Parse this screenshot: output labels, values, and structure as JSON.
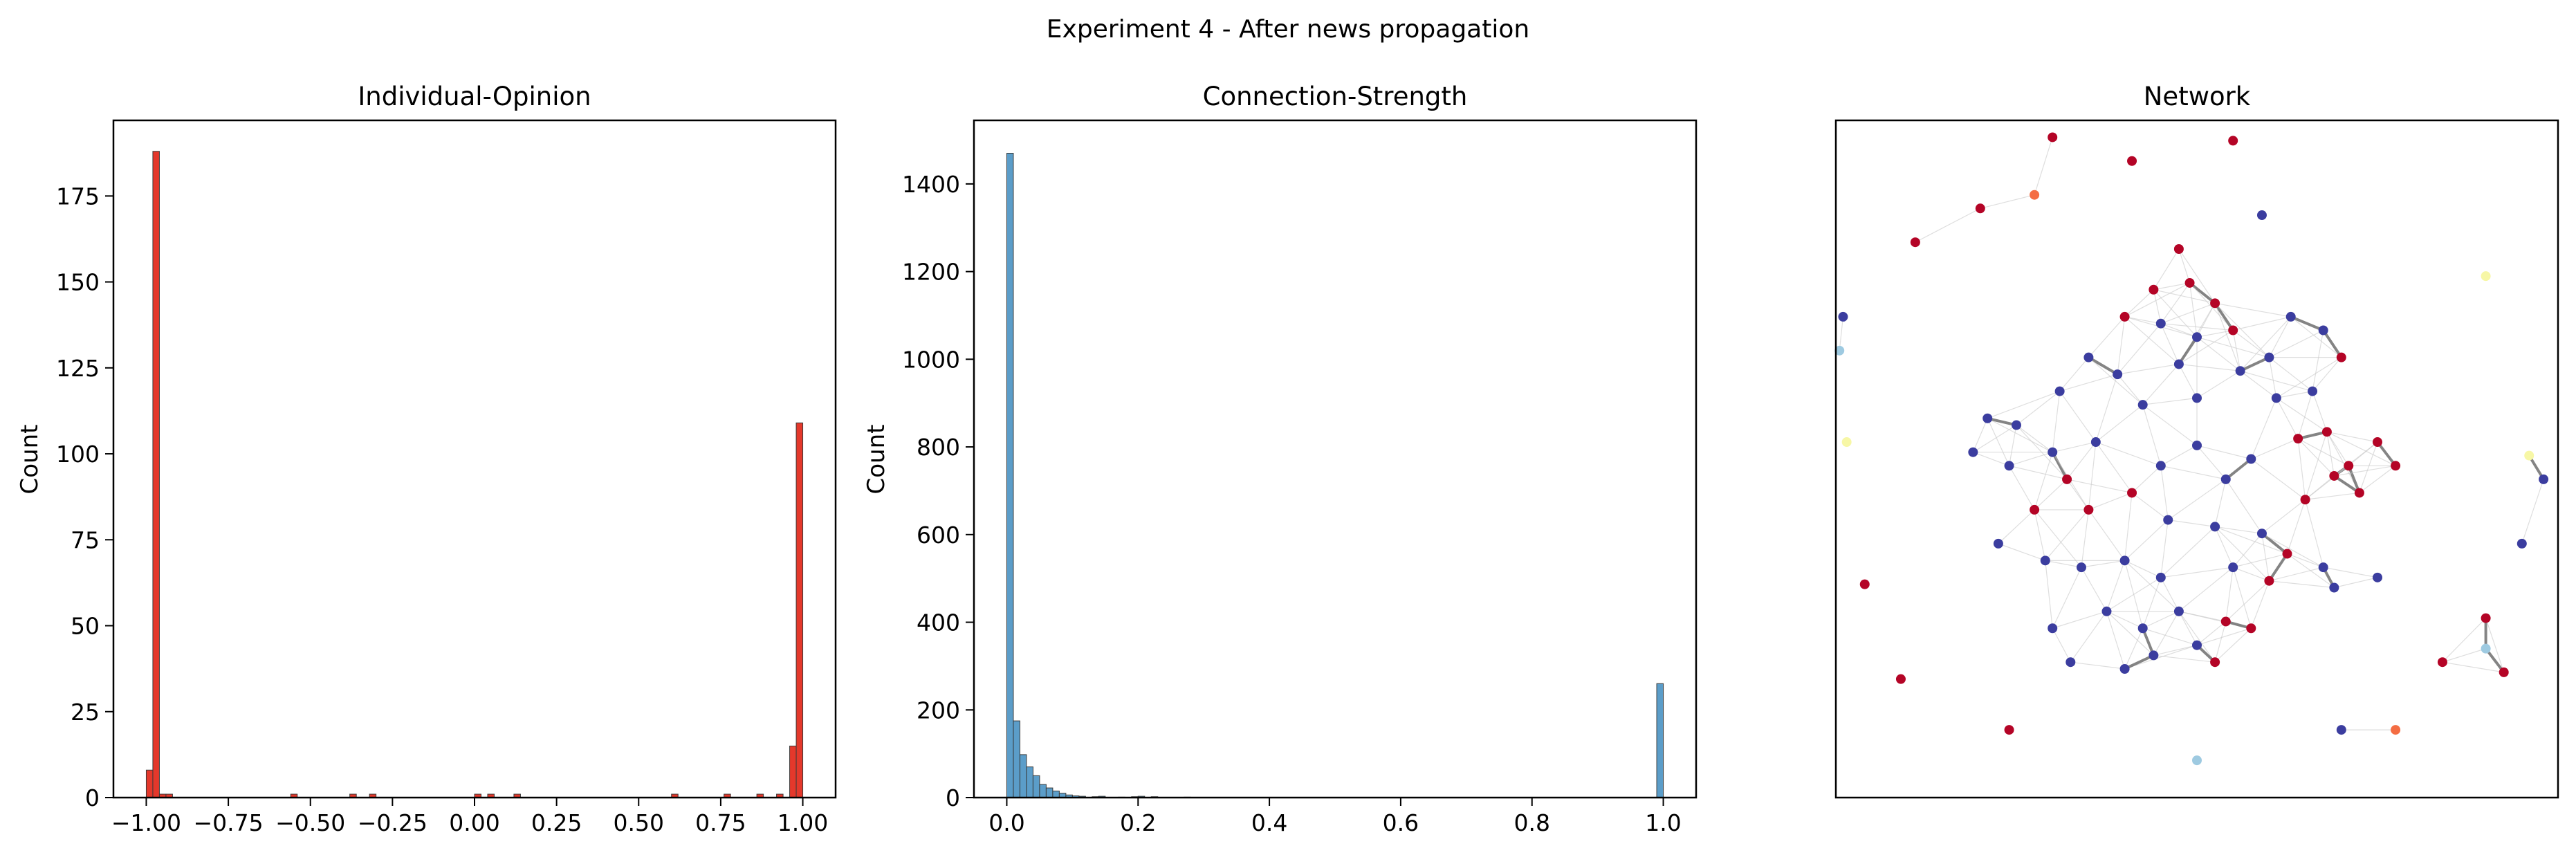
{
  "figure": {
    "suptitle": "Experiment 4 - After news propagation"
  },
  "chart_data": [
    {
      "type": "bar",
      "title": "Individual-Opinion",
      "xlabel": "",
      "ylabel": "Count",
      "xlim": [
        -1.1,
        1.1
      ],
      "ylim": [
        0,
        197
      ],
      "bar_color": "#e4382b",
      "xticks": [
        -1.0,
        -0.75,
        -0.5,
        -0.25,
        0.0,
        0.25,
        0.5,
        0.75,
        1.0
      ],
      "xtick_labels": [
        "−1.00",
        "−0.75",
        "−0.50",
        "−0.25",
        "0.00",
        "0.25",
        "0.50",
        "0.75",
        "1.00"
      ],
      "yticks": [
        0,
        25,
        50,
        75,
        100,
        125,
        150,
        175
      ],
      "ytick_labels": [
        "0",
        "25",
        "50",
        "75",
        "100",
        "125",
        "150",
        "175"
      ],
      "bin_width": 0.02,
      "bins": [
        {
          "x": -1.0,
          "count": 8
        },
        {
          "x": -0.98,
          "count": 188
        },
        {
          "x": -0.96,
          "count": 1
        },
        {
          "x": -0.94,
          "count": 1
        },
        {
          "x": -0.56,
          "count": 1
        },
        {
          "x": -0.38,
          "count": 1
        },
        {
          "x": -0.32,
          "count": 1
        },
        {
          "x": 0.0,
          "count": 1
        },
        {
          "x": 0.04,
          "count": 1
        },
        {
          "x": 0.12,
          "count": 1
        },
        {
          "x": 0.6,
          "count": 1
        },
        {
          "x": 0.76,
          "count": 1
        },
        {
          "x": 0.86,
          "count": 1
        },
        {
          "x": 0.92,
          "count": 1
        },
        {
          "x": 0.96,
          "count": 15
        },
        {
          "x": 0.98,
          "count": 109
        }
      ]
    },
    {
      "type": "bar",
      "title": "Connection-Strength",
      "xlabel": "",
      "ylabel": "Count",
      "xlim": [
        -0.05,
        1.05
      ],
      "ylim": [
        0,
        1545
      ],
      "bar_color": "#5b9dc9",
      "xticks": [
        0.0,
        0.2,
        0.4,
        0.6,
        0.8,
        1.0
      ],
      "xtick_labels": [
        "0.0",
        "0.2",
        "0.4",
        "0.6",
        "0.8",
        "1.0"
      ],
      "yticks": [
        0,
        200,
        400,
        600,
        800,
        1000,
        1200,
        1400
      ],
      "ytick_labels": [
        "0",
        "200",
        "400",
        "600",
        "800",
        "1000",
        "1200",
        "1400"
      ],
      "bin_width": 0.01,
      "bins": [
        {
          "x": 0.0,
          "count": 1470
        },
        {
          "x": 0.01,
          "count": 175
        },
        {
          "x": 0.02,
          "count": 98
        },
        {
          "x": 0.03,
          "count": 70
        },
        {
          "x": 0.04,
          "count": 50
        },
        {
          "x": 0.05,
          "count": 30
        },
        {
          "x": 0.06,
          "count": 22
        },
        {
          "x": 0.07,
          "count": 15
        },
        {
          "x": 0.08,
          "count": 10
        },
        {
          "x": 0.09,
          "count": 6
        },
        {
          "x": 0.1,
          "count": 4
        },
        {
          "x": 0.11,
          "count": 3
        },
        {
          "x": 0.13,
          "count": 2
        },
        {
          "x": 0.14,
          "count": 3
        },
        {
          "x": 0.17,
          "count": 1
        },
        {
          "x": 0.19,
          "count": 2
        },
        {
          "x": 0.2,
          "count": 3
        },
        {
          "x": 0.22,
          "count": 2
        },
        {
          "x": 0.27,
          "count": 1
        },
        {
          "x": 0.99,
          "count": 260
        }
      ]
    },
    {
      "type": "scatter",
      "title": "Network",
      "axes_visible": false,
      "xlim": [
        -1,
        1
      ],
      "ylim": [
        -1,
        1
      ],
      "colors": {
        "red": "#b40426",
        "blue": "#3b3d9f",
        "light": "#f7f7a6",
        "lightblue": "#9ecae1",
        "orange": "#f46d43"
      },
      "nodes": [
        {
          "x": -0.4,
          "y": 0.95,
          "c": "red"
        },
        {
          "x": -0.18,
          "y": 0.88,
          "c": "red"
        },
        {
          "x": 0.1,
          "y": 0.94,
          "c": "red"
        },
        {
          "x": 0.18,
          "y": 0.72,
          "c": "blue"
        },
        {
          "x": -0.6,
          "y": 0.74,
          "c": "red"
        },
        {
          "x": -0.78,
          "y": 0.64,
          "c": "red"
        },
        {
          "x": -0.45,
          "y": 0.78,
          "c": "orange"
        },
        {
          "x": -0.98,
          "y": 0.42,
          "c": "blue"
        },
        {
          "x": -0.99,
          "y": 0.32,
          "c": "lightblue"
        },
        {
          "x": -0.97,
          "y": 0.05,
          "c": "light"
        },
        {
          "x": -0.92,
          "y": -0.37,
          "c": "red"
        },
        {
          "x": -0.82,
          "y": -0.65,
          "c": "red"
        },
        {
          "x": -0.52,
          "y": -0.8,
          "c": "red"
        },
        {
          "x": 0.0,
          "y": -0.89,
          "c": "lightblue"
        },
        {
          "x": 0.4,
          "y": -0.8,
          "c": "blue"
        },
        {
          "x": 0.55,
          "y": -0.8,
          "c": "orange"
        },
        {
          "x": 0.68,
          "y": -0.6,
          "c": "red"
        },
        {
          "x": 0.8,
          "y": -0.56,
          "c": "lightblue"
        },
        {
          "x": 0.85,
          "y": -0.63,
          "c": "red"
        },
        {
          "x": 0.8,
          "y": -0.47,
          "c": "red"
        },
        {
          "x": 0.9,
          "y": -0.25,
          "c": "blue"
        },
        {
          "x": 0.96,
          "y": -0.06,
          "c": "blue"
        },
        {
          "x": 0.92,
          "y": 0.01,
          "c": "light"
        },
        {
          "x": 0.8,
          "y": 0.54,
          "c": "light"
        },
        {
          "x": -0.05,
          "y": 0.62,
          "c": "red"
        },
        {
          "x": -0.12,
          "y": 0.5,
          "c": "red"
        },
        {
          "x": -0.02,
          "y": 0.52,
          "c": "red"
        },
        {
          "x": 0.05,
          "y": 0.46,
          "c": "red"
        },
        {
          "x": -0.2,
          "y": 0.42,
          "c": "red"
        },
        {
          "x": 0.1,
          "y": 0.38,
          "c": "red"
        },
        {
          "x": -0.1,
          "y": 0.4,
          "c": "blue"
        },
        {
          "x": 0.0,
          "y": 0.36,
          "c": "blue"
        },
        {
          "x": -0.3,
          "y": 0.3,
          "c": "blue"
        },
        {
          "x": -0.22,
          "y": 0.25,
          "c": "blue"
        },
        {
          "x": -0.05,
          "y": 0.28,
          "c": "blue"
        },
        {
          "x": 0.12,
          "y": 0.26,
          "c": "blue"
        },
        {
          "x": 0.2,
          "y": 0.3,
          "c": "blue"
        },
        {
          "x": 0.22,
          "y": 0.18,
          "c": "blue"
        },
        {
          "x": -0.15,
          "y": 0.16,
          "c": "blue"
        },
        {
          "x": 0.0,
          "y": 0.18,
          "c": "blue"
        },
        {
          "x": 0.32,
          "y": 0.2,
          "c": "blue"
        },
        {
          "x": 0.36,
          "y": 0.08,
          "c": "red"
        },
        {
          "x": 0.28,
          "y": 0.06,
          "c": "red"
        },
        {
          "x": 0.42,
          "y": -0.02,
          "c": "red"
        },
        {
          "x": 0.45,
          "y": -0.1,
          "c": "red"
        },
        {
          "x": 0.38,
          "y": -0.05,
          "c": "red"
        },
        {
          "x": 0.3,
          "y": -0.12,
          "c": "red"
        },
        {
          "x": -0.28,
          "y": 0.05,
          "c": "blue"
        },
        {
          "x": -0.4,
          "y": 0.02,
          "c": "blue"
        },
        {
          "x": -0.52,
          "y": -0.02,
          "c": "blue"
        },
        {
          "x": -0.36,
          "y": -0.06,
          "c": "red"
        },
        {
          "x": -0.3,
          "y": -0.15,
          "c": "red"
        },
        {
          "x": -0.18,
          "y": -0.1,
          "c": "red"
        },
        {
          "x": -0.1,
          "y": -0.02,
          "c": "blue"
        },
        {
          "x": 0.0,
          "y": 0.04,
          "c": "blue"
        },
        {
          "x": 0.08,
          "y": -0.06,
          "c": "blue"
        },
        {
          "x": 0.15,
          "y": 0.0,
          "c": "blue"
        },
        {
          "x": -0.08,
          "y": -0.18,
          "c": "blue"
        },
        {
          "x": 0.05,
          "y": -0.2,
          "c": "blue"
        },
        {
          "x": 0.18,
          "y": -0.22,
          "c": "blue"
        },
        {
          "x": -0.2,
          "y": -0.3,
          "c": "blue"
        },
        {
          "x": -0.32,
          "y": -0.32,
          "c": "blue"
        },
        {
          "x": -0.1,
          "y": -0.35,
          "c": "blue"
        },
        {
          "x": 0.1,
          "y": -0.32,
          "c": "blue"
        },
        {
          "x": 0.2,
          "y": -0.36,
          "c": "red"
        },
        {
          "x": 0.25,
          "y": -0.28,
          "c": "red"
        },
        {
          "x": -0.05,
          "y": -0.45,
          "c": "blue"
        },
        {
          "x": -0.15,
          "y": -0.5,
          "c": "blue"
        },
        {
          "x": -0.25,
          "y": -0.45,
          "c": "blue"
        },
        {
          "x": 0.0,
          "y": -0.55,
          "c": "blue"
        },
        {
          "x": 0.08,
          "y": -0.48,
          "c": "red"
        },
        {
          "x": 0.15,
          "y": -0.5,
          "c": "red"
        },
        {
          "x": -0.4,
          "y": -0.5,
          "c": "blue"
        },
        {
          "x": -0.35,
          "y": -0.6,
          "c": "blue"
        },
        {
          "x": -0.2,
          "y": -0.62,
          "c": "blue"
        },
        {
          "x": -0.12,
          "y": -0.58,
          "c": "blue"
        },
        {
          "x": 0.05,
          "y": -0.6,
          "c": "red"
        },
        {
          "x": -0.45,
          "y": -0.15,
          "c": "red"
        },
        {
          "x": -0.5,
          "y": 0.1,
          "c": "blue"
        },
        {
          "x": -0.55,
          "y": -0.25,
          "c": "blue"
        },
        {
          "x": -0.42,
          "y": -0.3,
          "c": "blue"
        },
        {
          "x": -0.38,
          "y": 0.2,
          "c": "blue"
        },
        {
          "x": 0.26,
          "y": 0.42,
          "c": "blue"
        },
        {
          "x": 0.35,
          "y": 0.38,
          "c": "blue"
        },
        {
          "x": 0.4,
          "y": 0.3,
          "c": "red"
        },
        {
          "x": 0.5,
          "y": 0.05,
          "c": "red"
        },
        {
          "x": 0.55,
          "y": -0.02,
          "c": "red"
        },
        {
          "x": 0.35,
          "y": -0.32,
          "c": "blue"
        },
        {
          "x": 0.38,
          "y": -0.38,
          "c": "blue"
        },
        {
          "x": 0.5,
          "y": -0.35,
          "c": "blue"
        },
        {
          "x": -0.58,
          "y": 0.12,
          "c": "blue"
        },
        {
          "x": -0.62,
          "y": 0.02,
          "c": "blue"
        }
      ]
    }
  ]
}
